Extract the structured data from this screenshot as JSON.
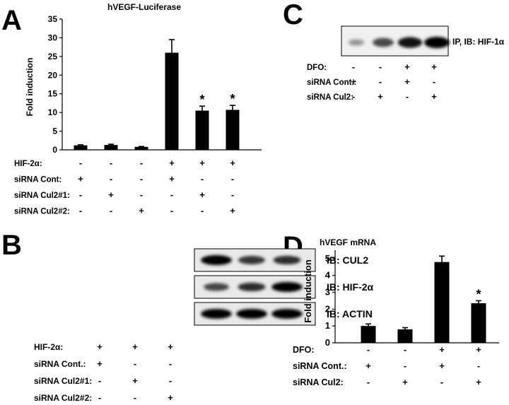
{
  "panels": {
    "A": {
      "letter": "A"
    },
    "B": {
      "letter": "B"
    },
    "C": {
      "letter": "C"
    },
    "D": {
      "letter": "D"
    }
  },
  "chart_data": [
    {
      "id": "A",
      "type": "bar",
      "title": "hVEGF-Luciferase",
      "ylabel": "Fold induction",
      "ylim": [
        0,
        35
      ],
      "yticks": [
        0,
        5,
        10,
        15,
        20,
        25,
        30,
        35
      ],
      "values": [
        1.2,
        1.3,
        0.8,
        26,
        10.5,
        10.7
      ],
      "errors": [
        0.15,
        0.2,
        0.1,
        3.5,
        1.2,
        1.2
      ],
      "significance": [
        "",
        "",
        "",
        "",
        "*",
        "*"
      ],
      "conditions": [
        {
          "label": "HIF-2α:",
          "signs": [
            "-",
            "-",
            "-",
            "+",
            "+",
            "+"
          ]
        },
        {
          "label": "siRNA Cont:",
          "signs": [
            "+",
            "-",
            "-",
            "+",
            "-",
            "-"
          ]
        },
        {
          "label": "siRNA Cul2#1:",
          "signs": [
            "-",
            "+",
            "-",
            "-",
            "+",
            "-"
          ]
        },
        {
          "label": "siRNA Cul2#2:",
          "signs": [
            "-",
            "-",
            "+",
            "-",
            "-",
            "+"
          ]
        }
      ]
    },
    {
      "id": "D",
      "type": "bar",
      "title": "hVEGF mRNA",
      "ylabel": "Fold induction",
      "ylim": [
        0,
        5.5
      ],
      "yticks": [
        0,
        1,
        2,
        3,
        4,
        5
      ],
      "values": [
        1.0,
        0.8,
        4.8,
        2.35
      ],
      "errors": [
        0.12,
        0.1,
        0.35,
        0.15
      ],
      "significance": [
        "",
        "",
        "",
        "*"
      ],
      "conditions": [
        {
          "label": "DFO:",
          "signs": [
            "-",
            "-",
            "+",
            "+"
          ]
        },
        {
          "label": "siRNA Cont.:",
          "signs": [
            "+",
            "-",
            "+",
            "-"
          ]
        },
        {
          "label": "siRNA Cul2:",
          "signs": [
            "-",
            "+",
            "-",
            "+"
          ]
        }
      ]
    }
  ],
  "blots": {
    "B": {
      "rows": [
        {
          "label": "IB: CUL2",
          "bands": [
            1.0,
            0.7,
            0.75
          ]
        },
        {
          "label": "IB: HIF-2α",
          "bands": [
            0.6,
            0.75,
            1.0
          ]
        },
        {
          "label": "IB: ACTIN",
          "bands": [
            1.0,
            1.0,
            1.0
          ]
        }
      ],
      "conditions": [
        {
          "label": "HIF-2α:",
          "signs": [
            "+",
            "+",
            "+"
          ]
        },
        {
          "label": "siRNA Cont.:",
          "signs": [
            "+",
            "-",
            "-"
          ]
        },
        {
          "label": "siRNA Cul2#1:",
          "signs": [
            "-",
            "+",
            "-"
          ]
        },
        {
          "label": "siRNA Cul2#2:",
          "signs": [
            "-",
            "-",
            "+"
          ]
        }
      ]
    },
    "C": {
      "rows": [
        {
          "label": "IP, IB: HIF-1α",
          "bands": [
            0.15,
            0.6,
            0.9,
            1.0
          ]
        }
      ],
      "conditions": [
        {
          "label": "DFO:",
          "signs": [
            "-",
            "-",
            "+",
            "+"
          ]
        },
        {
          "label": "siRNA Cont.:",
          "signs": [
            "+",
            "-",
            "+",
            "-"
          ]
        },
        {
          "label": "siRNA Cul2:",
          "signs": [
            "-",
            "+",
            "-",
            "+"
          ]
        }
      ]
    }
  }
}
